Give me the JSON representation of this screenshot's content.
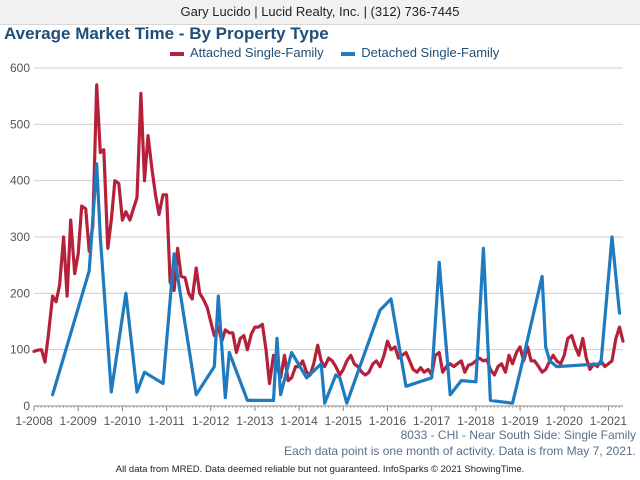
{
  "header": {
    "text": "Gary Lucido | Lucid Realty, Inc. | (312) 736-7445"
  },
  "colors": {
    "attached": "#b5213b",
    "detached": "#1f7bbf",
    "title": "#1f4e79",
    "grid": "#cfcfcf"
  },
  "notes": {
    "area": "8033 - CHI - Near South Side: Single Family",
    "data_point": "Each data point is one month of activity. Data is from May 7, 2021.",
    "footer": "All data from MRED. Data deemed reliable but not guaranteed. InfoSparks © 2021 ShowingTime."
  },
  "chart_data": {
    "type": "line",
    "title": "Average Market Time - By Property Type",
    "xlabel": "",
    "ylabel": "",
    "ylim": [
      0,
      600
    ],
    "yticks": [
      0,
      100,
      200,
      300,
      400,
      500,
      600
    ],
    "xlim": [
      2008,
      2021.33
    ],
    "xtick_labels": [
      "1-2008",
      "1-2009",
      "1-2010",
      "1-2011",
      "1-2012",
      "1-2013",
      "1-2014",
      "1-2015",
      "1-2016",
      "1-2017",
      "1-2018",
      "1-2019",
      "1-2020",
      "1-2021"
    ],
    "grid": "horizontal",
    "legend_position": "top",
    "series": [
      {
        "name": "Attached Single-Family",
        "color": "#b5213b",
        "points": [
          [
            2008.0,
            97
          ],
          [
            2008.08,
            99
          ],
          [
            2008.17,
            100
          ],
          [
            2008.25,
            78
          ],
          [
            2008.33,
            130
          ],
          [
            2008.42,
            195
          ],
          [
            2008.5,
            185
          ],
          [
            2008.58,
            215
          ],
          [
            2008.67,
            300
          ],
          [
            2008.75,
            195
          ],
          [
            2008.83,
            330
          ],
          [
            2008.92,
            235
          ],
          [
            2009.0,
            270
          ],
          [
            2009.08,
            355
          ],
          [
            2009.17,
            350
          ],
          [
            2009.25,
            275
          ],
          [
            2009.33,
            320
          ],
          [
            2009.42,
            570
          ],
          [
            2009.5,
            450
          ],
          [
            2009.58,
            455
          ],
          [
            2009.67,
            280
          ],
          [
            2009.75,
            330
          ],
          [
            2009.83,
            400
          ],
          [
            2009.92,
            395
          ],
          [
            2010.0,
            330
          ],
          [
            2010.08,
            345
          ],
          [
            2010.17,
            330
          ],
          [
            2010.25,
            350
          ],
          [
            2010.33,
            370
          ],
          [
            2010.42,
            555
          ],
          [
            2010.5,
            400
          ],
          [
            2010.58,
            480
          ],
          [
            2010.67,
            420
          ],
          [
            2010.75,
            375
          ],
          [
            2010.83,
            340
          ],
          [
            2010.92,
            375
          ],
          [
            2011.0,
            375
          ],
          [
            2011.08,
            220
          ],
          [
            2011.17,
            205
          ],
          [
            2011.25,
            280
          ],
          [
            2011.33,
            230
          ],
          [
            2011.42,
            228
          ],
          [
            2011.5,
            200
          ],
          [
            2011.58,
            190
          ],
          [
            2011.67,
            245
          ],
          [
            2011.75,
            200
          ],
          [
            2011.83,
            190
          ],
          [
            2011.92,
            175
          ],
          [
            2012.0,
            150
          ],
          [
            2012.08,
            125
          ],
          [
            2012.17,
            140
          ],
          [
            2012.25,
            115
          ],
          [
            2012.33,
            135
          ],
          [
            2012.42,
            130
          ],
          [
            2012.5,
            130
          ],
          [
            2012.58,
            95
          ],
          [
            2012.67,
            120
          ],
          [
            2012.75,
            125
          ],
          [
            2012.83,
            100
          ],
          [
            2012.92,
            128
          ],
          [
            2013.0,
            140
          ],
          [
            2013.08,
            140
          ],
          [
            2013.17,
            145
          ],
          [
            2013.25,
            100
          ],
          [
            2013.33,
            40
          ],
          [
            2013.42,
            90
          ],
          [
            2013.5,
            70
          ],
          [
            2013.58,
            50
          ],
          [
            2013.67,
            90
          ],
          [
            2013.75,
            45
          ],
          [
            2013.83,
            50
          ],
          [
            2013.92,
            70
          ],
          [
            2014.0,
            70
          ],
          [
            2014.08,
            80
          ],
          [
            2014.17,
            60
          ],
          [
            2014.25,
            55
          ],
          [
            2014.33,
            75
          ],
          [
            2014.42,
            108
          ],
          [
            2014.5,
            80
          ],
          [
            2014.58,
            70
          ],
          [
            2014.67,
            85
          ],
          [
            2014.75,
            80
          ],
          [
            2014.83,
            70
          ],
          [
            2014.92,
            55
          ],
          [
            2015.0,
            65
          ],
          [
            2015.08,
            80
          ],
          [
            2015.17,
            90
          ],
          [
            2015.25,
            75
          ],
          [
            2015.33,
            70
          ],
          [
            2015.42,
            60
          ],
          [
            2015.5,
            55
          ],
          [
            2015.58,
            60
          ],
          [
            2015.67,
            75
          ],
          [
            2015.75,
            80
          ],
          [
            2015.83,
            70
          ],
          [
            2015.92,
            90
          ],
          [
            2016.0,
            115
          ],
          [
            2016.08,
            100
          ],
          [
            2016.17,
            105
          ],
          [
            2016.25,
            85
          ],
          [
            2016.33,
            90
          ],
          [
            2016.42,
            95
          ],
          [
            2016.5,
            80
          ],
          [
            2016.58,
            65
          ],
          [
            2016.67,
            60
          ],
          [
            2016.75,
            68
          ],
          [
            2016.83,
            60
          ],
          [
            2016.92,
            65
          ],
          [
            2017.0,
            55
          ],
          [
            2017.08,
            90
          ],
          [
            2017.17,
            95
          ],
          [
            2017.25,
            60
          ],
          [
            2017.33,
            70
          ],
          [
            2017.42,
            75
          ],
          [
            2017.5,
            70
          ],
          [
            2017.58,
            75
          ],
          [
            2017.67,
            80
          ],
          [
            2017.75,
            60
          ],
          [
            2017.83,
            72
          ],
          [
            2017.92,
            75
          ],
          [
            2018.0,
            80
          ],
          [
            2018.08,
            85
          ],
          [
            2018.17,
            80
          ],
          [
            2018.25,
            82
          ],
          [
            2018.33,
            65
          ],
          [
            2018.42,
            55
          ],
          [
            2018.5,
            70
          ],
          [
            2018.58,
            75
          ],
          [
            2018.67,
            60
          ],
          [
            2018.75,
            90
          ],
          [
            2018.83,
            75
          ],
          [
            2018.92,
            95
          ],
          [
            2019.0,
            105
          ],
          [
            2019.08,
            80
          ],
          [
            2019.17,
            105
          ],
          [
            2019.25,
            80
          ],
          [
            2019.33,
            80
          ],
          [
            2019.42,
            70
          ],
          [
            2019.5,
            60
          ],
          [
            2019.58,
            65
          ],
          [
            2019.67,
            80
          ],
          [
            2019.75,
            90
          ],
          [
            2019.83,
            80
          ],
          [
            2019.92,
            75
          ],
          [
            2020.0,
            90
          ],
          [
            2020.08,
            120
          ],
          [
            2020.17,
            125
          ],
          [
            2020.25,
            105
          ],
          [
            2020.33,
            90
          ],
          [
            2020.42,
            120
          ],
          [
            2020.5,
            85
          ],
          [
            2020.58,
            65
          ],
          [
            2020.67,
            75
          ],
          [
            2020.75,
            70
          ],
          [
            2020.83,
            80
          ],
          [
            2020.92,
            70
          ],
          [
            2021.0,
            75
          ],
          [
            2021.08,
            80
          ],
          [
            2021.17,
            120
          ],
          [
            2021.25,
            140
          ],
          [
            2021.33,
            115
          ]
        ]
      },
      {
        "name": "Detached Single-Family",
        "color": "#1f7bbf",
        "points": [
          [
            2008.42,
            20
          ],
          [
            2009.25,
            240
          ],
          [
            2009.42,
            430
          ],
          [
            2009.5,
            300
          ],
          [
            2009.75,
            25
          ],
          [
            2010.08,
            200
          ],
          [
            2010.33,
            25
          ],
          [
            2010.5,
            60
          ],
          [
            2010.92,
            40
          ],
          [
            2011.17,
            270
          ],
          [
            2011.67,
            20
          ],
          [
            2012.08,
            70
          ],
          [
            2012.17,
            195
          ],
          [
            2012.33,
            15
          ],
          [
            2012.42,
            95
          ],
          [
            2012.83,
            10
          ],
          [
            2013.42,
            10
          ],
          [
            2013.5,
            120
          ],
          [
            2013.58,
            20
          ],
          [
            2013.83,
            95
          ],
          [
            2014.17,
            50
          ],
          [
            2014.5,
            75
          ],
          [
            2014.58,
            5
          ],
          [
            2014.83,
            55
          ],
          [
            2014.92,
            50
          ],
          [
            2015.08,
            5
          ],
          [
            2015.83,
            170
          ],
          [
            2016.08,
            190
          ],
          [
            2016.42,
            35
          ],
          [
            2017.0,
            50
          ],
          [
            2017.17,
            255
          ],
          [
            2017.42,
            20
          ],
          [
            2017.67,
            45
          ],
          [
            2018.0,
            43
          ],
          [
            2018.17,
            280
          ],
          [
            2018.33,
            10
          ],
          [
            2018.83,
            5
          ],
          [
            2019.0,
            60
          ],
          [
            2019.5,
            230
          ],
          [
            2019.58,
            105
          ],
          [
            2019.67,
            80
          ],
          [
            2019.83,
            70
          ],
          [
            2020.83,
            75
          ],
          [
            2021.08,
            300
          ],
          [
            2021.25,
            165
          ]
        ]
      }
    ]
  }
}
